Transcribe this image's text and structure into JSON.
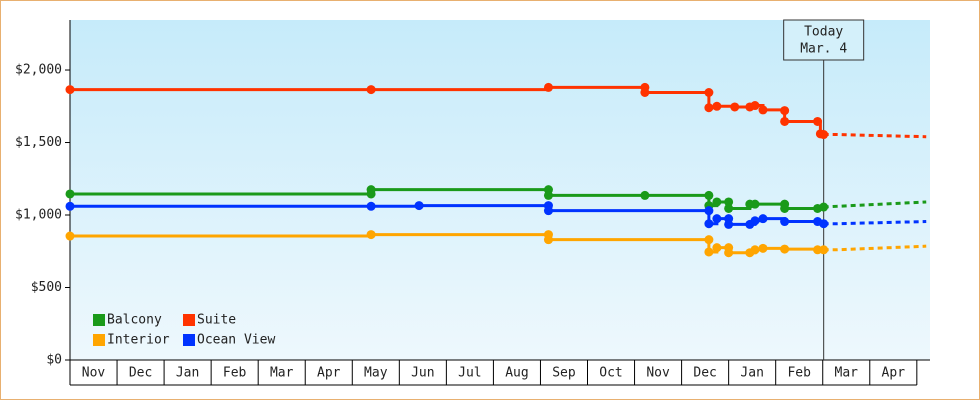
{
  "chart_data": {
    "type": "step-line",
    "xlim": [
      0,
      18.28
    ],
    "ylim": [
      0,
      2345
    ],
    "xticks": [
      {
        "value": 0,
        "label": "Nov"
      },
      {
        "value": 1,
        "label": "Dec"
      },
      {
        "value": 2,
        "label": "Jan"
      },
      {
        "value": 3,
        "label": "Feb"
      },
      {
        "value": 4,
        "label": "Mar"
      },
      {
        "value": 5,
        "label": "Apr"
      },
      {
        "value": 6,
        "label": "May"
      },
      {
        "value": 7,
        "label": "Jun"
      },
      {
        "value": 8,
        "label": "Jul"
      },
      {
        "value": 9,
        "label": "Aug"
      },
      {
        "value": 10,
        "label": "Sep"
      },
      {
        "value": 11,
        "label": "Oct"
      },
      {
        "value": 12,
        "label": "Nov"
      },
      {
        "value": 13,
        "label": "Dec"
      },
      {
        "value": 14,
        "label": "Jan"
      },
      {
        "value": 15,
        "label": "Feb"
      },
      {
        "value": 16,
        "label": "Mar"
      },
      {
        "value": 17,
        "label": "Apr"
      }
    ],
    "yticks": [
      {
        "value": 0,
        "label": "$0"
      },
      {
        "value": 500,
        "label": "$500"
      },
      {
        "value": 1000,
        "label": "$1,000"
      },
      {
        "value": 1500,
        "label": "$1,500"
      },
      {
        "value": 2000,
        "label": "$2,000"
      }
    ],
    "annotation": {
      "x": 16.02,
      "lines": [
        "Today",
        "Mar. 4"
      ]
    },
    "series": [
      {
        "name": "Balcony",
        "color": "#1a9a1a",
        "x": [
          0,
          6.4,
          6.4,
          10.17,
          10.17,
          12.22,
          13.58,
          13.58,
          13.75,
          14.0,
          14.0,
          14.45,
          14.56,
          15.19,
          15.19,
          15.89,
          16.02
        ],
        "values": [
          1145,
          1145,
          1175,
          1175,
          1135,
          1135,
          1135,
          1065,
          1090,
          1090,
          1045,
          1075,
          1075,
          1075,
          1045,
          1045,
          1055
        ],
        "forecast_x": [
          16.02,
          16.3,
          18.2
        ],
        "forecast_values": [
          1055,
          1060,
          1090
        ]
      },
      {
        "name": "Suite",
        "color": "#ff3300",
        "x": [
          0,
          6.4,
          10.17,
          12.22,
          12.22,
          13.58,
          13.58,
          13.75,
          14.13,
          14.45,
          14.56,
          14.73,
          15.19,
          15.19,
          15.89,
          15.95,
          16.02
        ],
        "values": [
          1865,
          1865,
          1880,
          1880,
          1845,
          1845,
          1740,
          1750,
          1745,
          1745,
          1755,
          1725,
          1720,
          1645,
          1645,
          1560,
          1555
        ],
        "forecast_x": [
          16.02,
          16.3,
          18.2
        ],
        "forecast_values": [
          1555,
          1555,
          1540
        ]
      },
      {
        "name": "Interior",
        "color": "#ffa500",
        "x": [
          0,
          6.4,
          10.17,
          10.17,
          13.58,
          13.58,
          13.75,
          14.0,
          14.0,
          14.45,
          14.56,
          14.73,
          15.19,
          15.89,
          16.02
        ],
        "values": [
          855,
          865,
          865,
          830,
          830,
          745,
          775,
          775,
          740,
          740,
          760,
          770,
          765,
          760,
          760
        ],
        "forecast_x": [
          16.02,
          16.3,
          18.2
        ],
        "forecast_values": [
          760,
          760,
          785
        ]
      },
      {
        "name": "Ocean View",
        "color": "#0033ff",
        "x": [
          0,
          6.4,
          7.42,
          10.17,
          10.17,
          13.58,
          13.58,
          13.75,
          14.0,
          14.0,
          14.45,
          14.56,
          14.73,
          15.19,
          15.89,
          16.02
        ],
        "values": [
          1060,
          1060,
          1065,
          1065,
          1030,
          1030,
          940,
          975,
          975,
          935,
          935,
          960,
          975,
          955,
          955,
          940
        ],
        "forecast_x": [
          16.02,
          16.3,
          18.2
        ],
        "forecast_values": [
          940,
          940,
          955
        ]
      }
    ]
  }
}
